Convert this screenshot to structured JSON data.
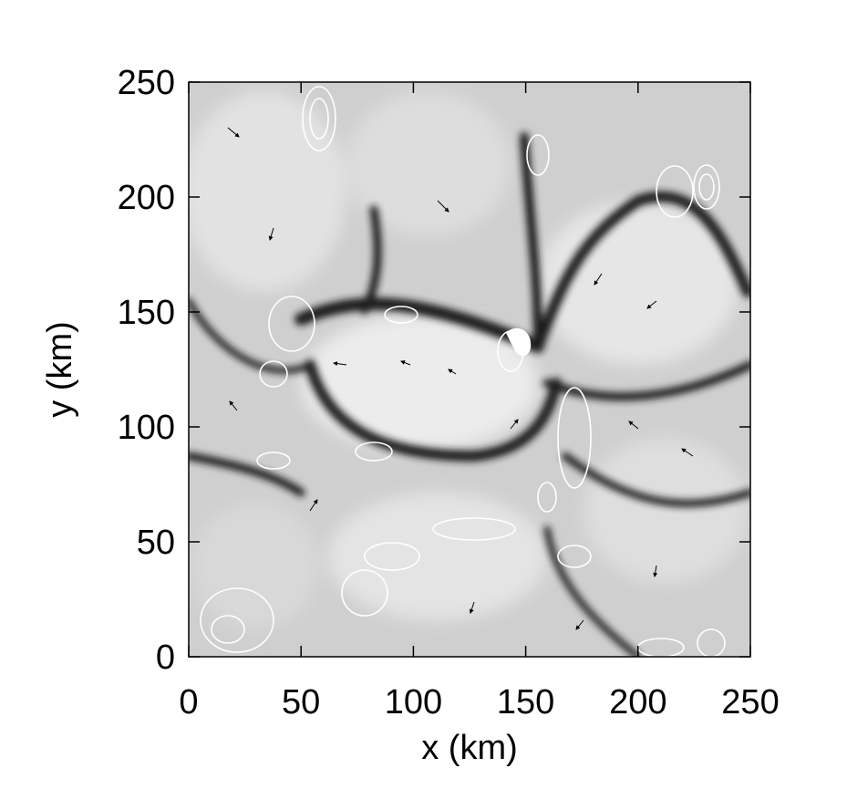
{
  "chart_data": {
    "type": "heatmap",
    "xlabel": "x (km)",
    "ylabel": "y (km)",
    "xlim": [
      0,
      250
    ],
    "ylim": [
      0,
      250
    ],
    "xticks": [
      0,
      50,
      100,
      150,
      200,
      250
    ],
    "yticks": [
      0,
      50,
      100,
      150,
      200,
      250
    ]
  }
}
